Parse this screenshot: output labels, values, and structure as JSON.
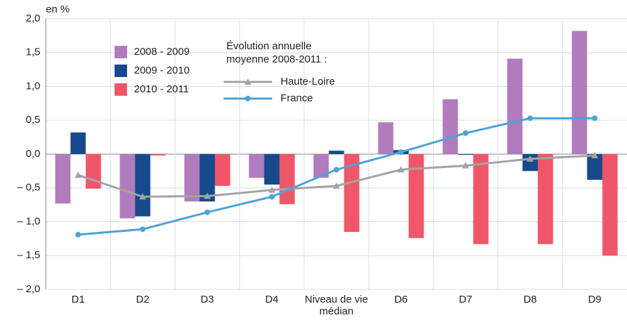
{
  "chart_data": {
    "type": "bar",
    "y_label": "en %",
    "categories": [
      "D1",
      "D2",
      "D3",
      "D4",
      "Niveau de vie médian",
      "D6",
      "D7",
      "D8",
      "D9"
    ],
    "series": [
      {
        "name": "2008 - 2009",
        "color": "#b07cbd",
        "values": [
          -0.73,
          -0.95,
          -0.7,
          -0.35,
          -0.35,
          0.47,
          0.81,
          1.41,
          1.82
        ]
      },
      {
        "name": "2009 - 2010",
        "color": "#164a8c",
        "values": [
          0.32,
          -0.92,
          -0.7,
          -0.45,
          0.05,
          0.06,
          -0.01,
          -0.25,
          -0.38
        ]
      },
      {
        "name": "2010 - 2011",
        "color": "#f0566a",
        "values": [
          -0.51,
          -0.02,
          -0.47,
          -0.74,
          -1.15,
          -1.24,
          -1.33,
          -1.33,
          -1.5
        ]
      }
    ],
    "line_legend_title": "Évolution annuelle moyenne 2008-2011 :",
    "lines": [
      {
        "name": "Haute-Loire",
        "color": "#a3a3a3",
        "marker": "triangle",
        "values": [
          -0.31,
          -0.63,
          -0.62,
          -0.53,
          -0.47,
          -0.23,
          -0.17,
          -0.07,
          -0.02
        ]
      },
      {
        "name": "France",
        "color": "#4ea2d8",
        "marker": "circle",
        "values": [
          -1.19,
          -1.11,
          -0.86,
          -0.63,
          -0.23,
          0.03,
          0.31,
          0.53,
          0.53
        ]
      }
    ],
    "ylim": [
      -2,
      2
    ],
    "yticks": [
      {
        "value": -2,
        "label": "– 2,0"
      },
      {
        "value": -1.5,
        "label": "– 1,5"
      },
      {
        "value": -1,
        "label": "– 1,0"
      },
      {
        "value": -0.5,
        "label": "– 0,5"
      },
      {
        "value": 0,
        "label": "0,0"
      },
      {
        "value": 0.5,
        "label": "0,5"
      },
      {
        "value": 1,
        "label": "1,0"
      },
      {
        "value": 1.5,
        "label": "1,5"
      },
      {
        "value": 2,
        "label": "2,0"
      }
    ],
    "grid": true
  }
}
